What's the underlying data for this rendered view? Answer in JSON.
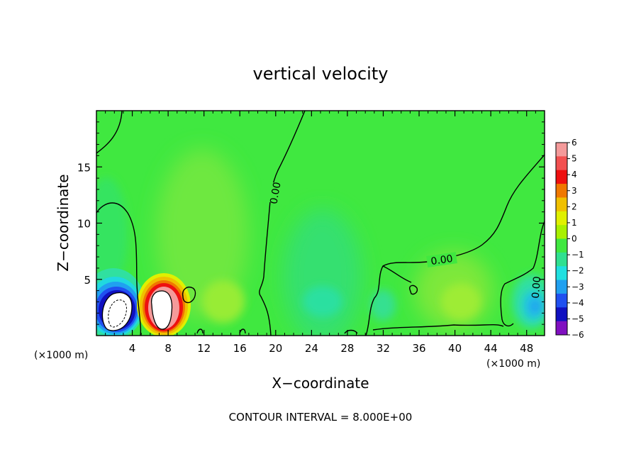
{
  "chart_data": {
    "type": "heatmap",
    "title": "vertical velocity",
    "xlabel": "X−coordinate",
    "ylabel": "Z−coordinate",
    "x_unit_left": "(×1000 m)",
    "x_unit_right": "(×1000 m)",
    "footer": "CONTOUR INTERVAL = 8.000E+00",
    "xlim": [
      0,
      50
    ],
    "ylim": [
      0,
      20
    ],
    "x_ticks": [
      4,
      8,
      12,
      16,
      20,
      24,
      28,
      32,
      36,
      40,
      44,
      48
    ],
    "y_ticks": [
      5,
      10,
      15
    ],
    "contour_labels": [
      {
        "text": "0.00",
        "x": 20,
        "y": 12.5
      },
      {
        "text": "0.00",
        "x": 38.5,
        "y": 6.5
      },
      {
        "text": "0.00",
        "x": 49,
        "y": 4.5
      }
    ],
    "colorbar": {
      "min": -6,
      "max": 6,
      "levels": [
        6,
        5,
        4,
        3,
        2,
        1,
        0,
        -1,
        -2,
        -3,
        -4,
        -5,
        -6
      ],
      "colors": [
        "#f49a9a",
        "#f25050",
        "#ee1010",
        "#f07800",
        "#f0c000",
        "#e0f000",
        "#a8f000",
        "#40e840",
        "#30e090",
        "#20e0e0",
        "#20a0f0",
        "#2050f0",
        "#1010c0",
        "#8010c0"
      ]
    },
    "features": [
      {
        "kind": "downdraft",
        "x": 2.2,
        "y": 2.8,
        "value": -6
      },
      {
        "kind": "updraft",
        "x": 7.2,
        "y": 2.6,
        "value": 6
      },
      {
        "kind": "weak_updraft",
        "x": 13,
        "y": 6.5,
        "value": 0.7
      },
      {
        "kind": "weak_downdraft",
        "x": 25.5,
        "y": 3.5,
        "value": -1.5
      },
      {
        "kind": "weak_updraft",
        "x": 40,
        "y": 4,
        "value": 0.8
      },
      {
        "kind": "downdraft",
        "x": 48.5,
        "y": 2.8,
        "value": -2.5
      }
    ]
  }
}
